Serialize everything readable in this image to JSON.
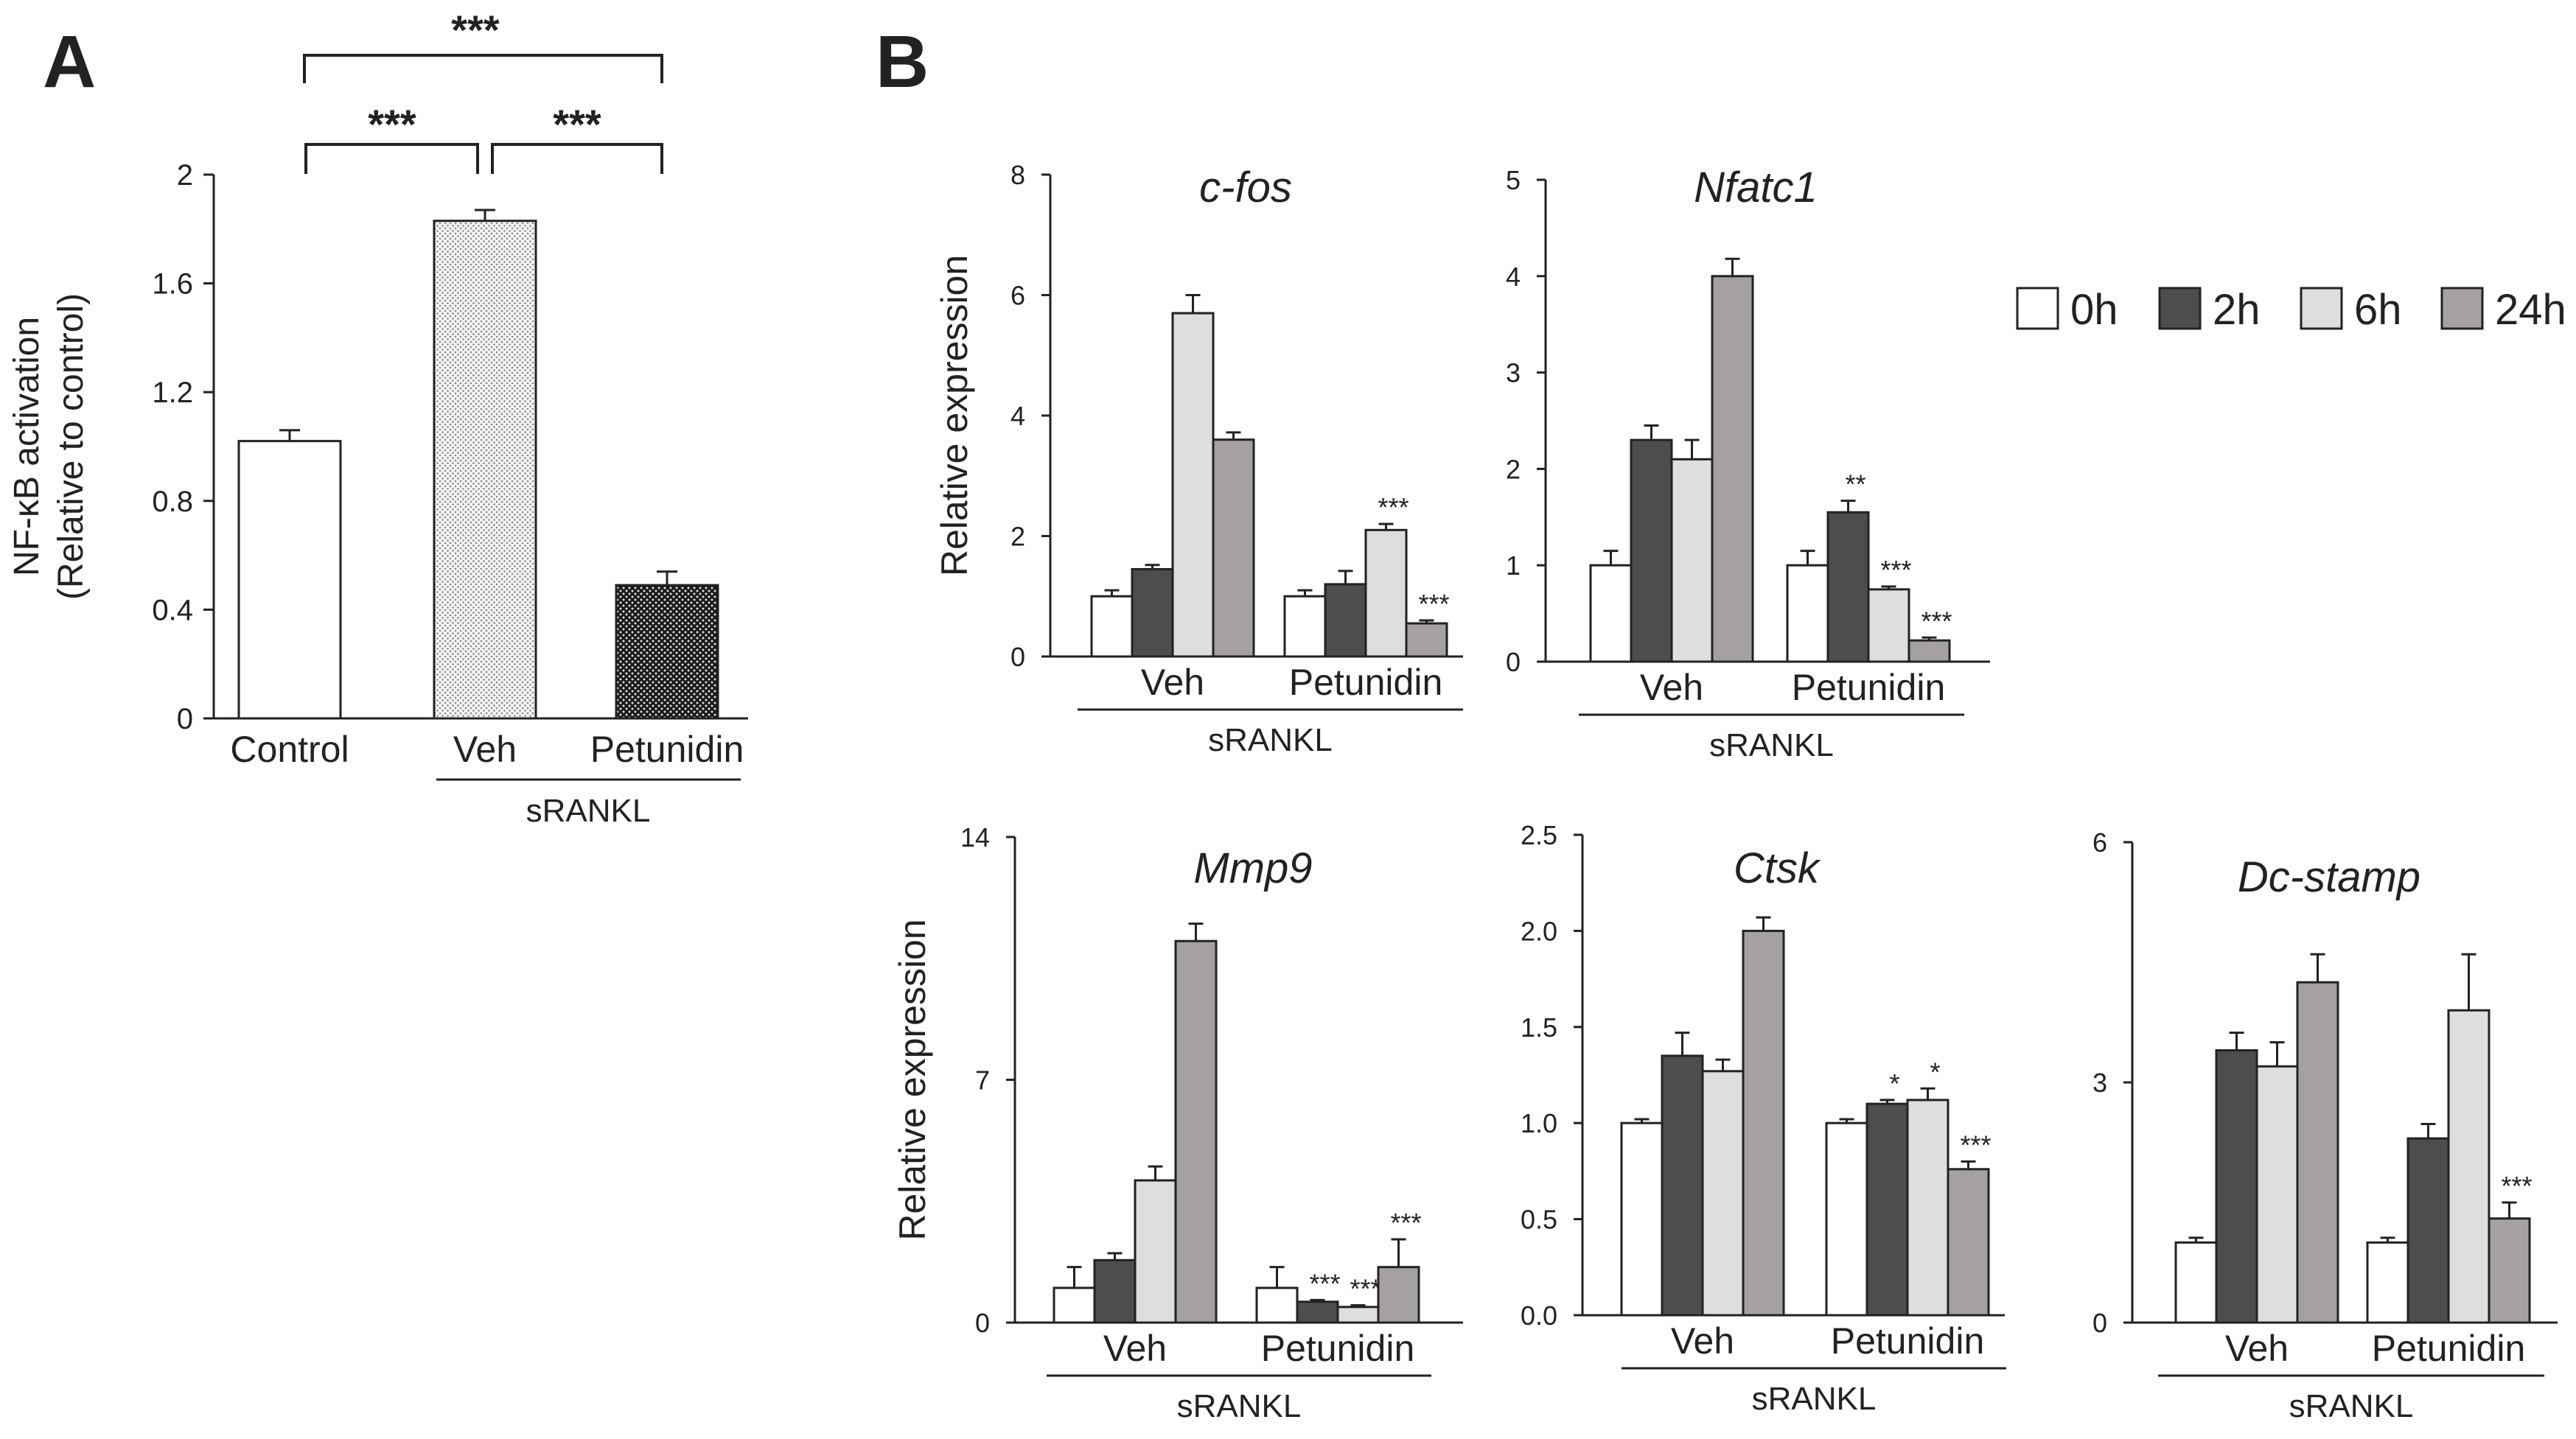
{
  "panel_labels": {
    "a": "A",
    "b": "B"
  },
  "legend": {
    "items": [
      {
        "label": "0h",
        "color": "#ffffff"
      },
      {
        "label": "2h",
        "color": "#4d4d4d"
      },
      {
        "label": "6h",
        "color": "#dedede"
      },
      {
        "label": "24h",
        "color": "#a6a1a1"
      }
    ]
  },
  "chart_data": [
    {
      "id": "A",
      "type": "bar",
      "title": "",
      "ylabel_line1": "NF-κB activation",
      "ylabel_line2": "(Relative to control)",
      "ylim": [
        0,
        2
      ],
      "yticks": [
        "0",
        "0.4",
        "0.8",
        "1.2",
        "1.6",
        "2"
      ],
      "categories": [
        "Control",
        "Veh",
        "Petunidin"
      ],
      "values": [
        1.02,
        1.83,
        0.49
      ],
      "errors": [
        0.04,
        0.04,
        0.05
      ],
      "group_label": "sRANKL",
      "significance": [
        {
          "from": "Veh",
          "to": "Control",
          "label": "***"
        },
        {
          "from": "Veh",
          "to": "Petunidin",
          "label": "***"
        },
        {
          "from": "Control",
          "to": "Petunidin",
          "label": "***"
        }
      ]
    },
    {
      "id": "c-fos",
      "type": "bar",
      "title": "c-fos",
      "ylabel": "Relative expression",
      "ylim": [
        0,
        8
      ],
      "yticks": [
        "0",
        "2",
        "4",
        "6",
        "8"
      ],
      "groups": [
        "Veh",
        "Petunidin"
      ],
      "group_label": "sRANKL",
      "series": [
        {
          "name": "0h",
          "values": [
            1.0,
            1.0
          ],
          "errors": [
            0.1,
            0.1
          ],
          "sig": [
            "",
            ""
          ]
        },
        {
          "name": "2h",
          "values": [
            1.45,
            1.2
          ],
          "errors": [
            0.07,
            0.22
          ],
          "sig": [
            "",
            ""
          ]
        },
        {
          "name": "6h",
          "values": [
            5.7,
            2.1
          ],
          "errors": [
            0.3,
            0.1
          ],
          "sig": [
            "",
            "***"
          ]
        },
        {
          "name": "24h",
          "values": [
            3.6,
            0.55
          ],
          "errors": [
            0.12,
            0.05
          ],
          "sig": [
            "",
            "***"
          ]
        }
      ]
    },
    {
      "id": "Nfatc1",
      "type": "bar",
      "title": "Nfatc1",
      "ylabel": "",
      "ylim": [
        0,
        5
      ],
      "yticks": [
        "0",
        "1",
        "2",
        "3",
        "4",
        "5"
      ],
      "groups": [
        "Veh",
        "Petunidin"
      ],
      "group_label": "sRANKL",
      "series": [
        {
          "name": "0h",
          "values": [
            1.0,
            1.0
          ],
          "errors": [
            0.15,
            0.15
          ],
          "sig": [
            "",
            ""
          ]
        },
        {
          "name": "2h",
          "values": [
            2.3,
            1.55
          ],
          "errors": [
            0.15,
            0.12
          ],
          "sig": [
            "",
            "**"
          ]
        },
        {
          "name": "6h",
          "values": [
            2.1,
            0.75
          ],
          "errors": [
            0.2,
            0.03
          ],
          "sig": [
            "",
            "***"
          ]
        },
        {
          "name": "24h",
          "values": [
            4.0,
            0.22
          ],
          "errors": [
            0.18,
            0.03
          ],
          "sig": [
            "",
            "***"
          ]
        }
      ]
    },
    {
      "id": "Mmp9",
      "type": "bar",
      "title": "Mmp9",
      "ylabel": "Relative expression",
      "ylim": [
        0,
        14
      ],
      "yticks": [
        "0",
        "7",
        "14"
      ],
      "groups": [
        "Veh",
        "Petunidin"
      ],
      "group_label": "sRANKL",
      "series": [
        {
          "name": "0h",
          "values": [
            1.0,
            1.0
          ],
          "errors": [
            0.6,
            0.6
          ],
          "sig": [
            "",
            ""
          ]
        },
        {
          "name": "2h",
          "values": [
            1.8,
            0.6
          ],
          "errors": [
            0.2,
            0.05
          ],
          "sig": [
            "",
            "***"
          ]
        },
        {
          "name": "6h",
          "values": [
            4.1,
            0.45
          ],
          "errors": [
            0.4,
            0.05
          ],
          "sig": [
            "",
            "***"
          ]
        },
        {
          "name": "24h",
          "values": [
            11.0,
            1.6
          ],
          "errors": [
            0.5,
            0.8
          ],
          "sig": [
            "",
            "***"
          ]
        }
      ]
    },
    {
      "id": "Ctsk",
      "type": "bar",
      "title": "Ctsk",
      "ylabel": "",
      "ylim": [
        0,
        2.5
      ],
      "yticks": [
        "0.0",
        "0.5",
        "1.0",
        "1.5",
        "2.0",
        "2.5"
      ],
      "groups": [
        "Veh",
        "Petunidin"
      ],
      "group_label": "sRANKL",
      "series": [
        {
          "name": "0h",
          "values": [
            1.0,
            1.0
          ],
          "errors": [
            0.02,
            0.02
          ],
          "sig": [
            "",
            ""
          ]
        },
        {
          "name": "2h",
          "values": [
            1.35,
            1.1
          ],
          "errors": [
            0.12,
            0.02
          ],
          "sig": [
            "",
            "*"
          ]
        },
        {
          "name": "6h",
          "values": [
            1.27,
            1.12
          ],
          "errors": [
            0.06,
            0.06
          ],
          "sig": [
            "",
            "*"
          ]
        },
        {
          "name": "24h",
          "values": [
            2.0,
            0.76
          ],
          "errors": [
            0.07,
            0.04
          ],
          "sig": [
            "",
            "***"
          ]
        }
      ]
    },
    {
      "id": "Dc-stamp",
      "type": "bar",
      "title": "Dc-stamp",
      "ylabel": "",
      "ylim": [
        0,
        6
      ],
      "yticks": [
        "0",
        "3",
        "6"
      ],
      "groups": [
        "Veh",
        "Petunidin"
      ],
      "group_label": "sRANKL",
      "series": [
        {
          "name": "0h",
          "values": [
            1.0,
            1.0
          ],
          "errors": [
            0.06,
            0.06
          ],
          "sig": [
            "",
            ""
          ]
        },
        {
          "name": "2h",
          "values": [
            3.4,
            2.3
          ],
          "errors": [
            0.22,
            0.18
          ],
          "sig": [
            "",
            ""
          ]
        },
        {
          "name": "6h",
          "values": [
            3.2,
            3.9
          ],
          "errors": [
            0.3,
            0.7
          ],
          "sig": [
            "",
            ""
          ]
        },
        {
          "name": "24h",
          "values": [
            4.25,
            1.3
          ],
          "errors": [
            0.35,
            0.2
          ],
          "sig": [
            "",
            "***"
          ]
        }
      ]
    }
  ]
}
